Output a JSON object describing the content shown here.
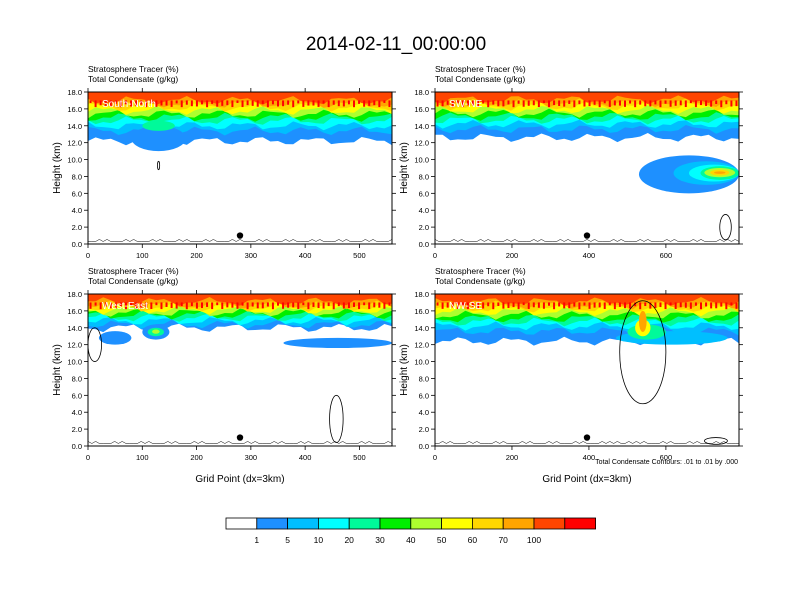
{
  "title": "2014-02-11_00:00:00",
  "footnote": "Total Condensate Contours: .01 to .01 by .000",
  "chart_data": [
    {
      "type": "heatmap",
      "panel_label": "South-North",
      "header_lines": [
        "Stratosphere Tracer   (%)",
        "Total Condensate   (g/kg)"
      ],
      "ylabel": "Height (km)",
      "xlabel": "",
      "xlim": [
        0,
        560
      ],
      "ylim": [
        0,
        18
      ],
      "xticks": [
        "0",
        "100",
        "200",
        "300",
        "400",
        "500"
      ],
      "xtick_values": [
        0,
        100,
        200,
        300,
        400,
        500
      ],
      "yticks": [
        "0.0",
        "2.0",
        "4.0",
        "6.0",
        "8.0",
        "10.0",
        "12.0",
        "14.0",
        "16.0",
        "18.0"
      ],
      "ytick_values": [
        0,
        2,
        4,
        6,
        8,
        10,
        12,
        14,
        16,
        18
      ],
      "marker": {
        "x": 280,
        "y": 1.0
      },
      "tracer_layers": [
        {
          "level": 1,
          "top": 18,
          "bottom": 12.2
        },
        {
          "level": 5,
          "top": 18,
          "bottom": 13.4
        },
        {
          "level": 10,
          "top": 18,
          "bottom": 14.0
        },
        {
          "level": 20,
          "top": 18,
          "bottom": 14.6
        },
        {
          "level": 30,
          "top": 18,
          "bottom": 15.0
        },
        {
          "level": 40,
          "top": 18,
          "bottom": 15.4
        },
        {
          "level": 50,
          "top": 18,
          "bottom": 15.8
        },
        {
          "level": 60,
          "top": 18,
          "bottom": 16.2
        },
        {
          "level": 70,
          "top": 18,
          "bottom": 16.6
        },
        {
          "level": 100,
          "top": 18,
          "bottom": 17.0
        }
      ],
      "features": [
        {
          "level": 1,
          "x": [
            80,
            180
          ],
          "y": [
            11.0,
            14.0
          ]
        },
        {
          "level": 20,
          "x": [
            100,
            160
          ],
          "y": [
            13.4,
            14.6
          ]
        }
      ],
      "condensate_contours": [
        {
          "x": [
            128,
            132
          ],
          "y": [
            8.8,
            9.8
          ]
        }
      ]
    },
    {
      "type": "heatmap",
      "panel_label": "SW-NE",
      "header_lines": [
        "Stratosphere Tracer   (%)",
        "Total Condensate   (g/kg)"
      ],
      "ylabel": "Height (km)",
      "xlabel": "",
      "xlim": [
        0,
        790
      ],
      "ylim": [
        0,
        18
      ],
      "xticks": [
        "0",
        "200",
        "400",
        "600"
      ],
      "xtick_values": [
        0,
        200,
        400,
        600
      ],
      "yticks": [
        "0.0",
        "2.0",
        "4.0",
        "6.0",
        "8.0",
        "10.0",
        "12.0",
        "14.0",
        "16.0",
        "18.0"
      ],
      "ytick_values": [
        0,
        2,
        4,
        6,
        8,
        10,
        12,
        14,
        16,
        18
      ],
      "marker": {
        "x": 395,
        "y": 1.0
      },
      "tracer_layers": [
        {
          "level": 1,
          "top": 18,
          "bottom": 12.6
        },
        {
          "level": 5,
          "top": 18,
          "bottom": 13.6
        },
        {
          "level": 10,
          "top": 18,
          "bottom": 14.2
        },
        {
          "level": 20,
          "top": 18,
          "bottom": 14.7
        },
        {
          "level": 30,
          "top": 18,
          "bottom": 15.1
        },
        {
          "level": 40,
          "top": 18,
          "bottom": 15.5
        },
        {
          "level": 50,
          "top": 18,
          "bottom": 15.9
        },
        {
          "level": 60,
          "top": 18,
          "bottom": 16.3
        },
        {
          "level": 70,
          "top": 18,
          "bottom": 16.7
        },
        {
          "level": 100,
          "top": 18,
          "bottom": 17.1
        }
      ],
      "features": [
        {
          "level": 1,
          "x": [
            530,
            790
          ],
          "y": [
            6.0,
            10.5
          ]
        },
        {
          "level": 5,
          "x": [
            620,
            790
          ],
          "y": [
            7.0,
            9.8
          ]
        },
        {
          "level": 10,
          "x": [
            660,
            790
          ],
          "y": [
            7.4,
            9.4
          ]
        },
        {
          "level": 20,
          "x": [
            690,
            790
          ],
          "y": [
            7.6,
            9.2
          ]
        },
        {
          "level": 40,
          "x": [
            700,
            780
          ],
          "y": [
            7.9,
            9.0
          ]
        },
        {
          "level": 60,
          "x": [
            715,
            765
          ],
          "y": [
            8.1,
            8.8
          ]
        },
        {
          "level": 70,
          "x": [
            725,
            755
          ],
          "y": [
            8.3,
            8.6
          ]
        }
      ],
      "condensate_contours": [
        {
          "x": [
            740,
            770
          ],
          "y": [
            0.5,
            3.5
          ]
        }
      ]
    },
    {
      "type": "heatmap",
      "panel_label": "West-East",
      "header_lines": [
        "Stratosphere Tracer   (%)",
        "Total Condensate   (g/kg)"
      ],
      "ylabel": "Height (km)",
      "xlabel": "Grid Point (dx=3km)",
      "xlim": [
        0,
        560
      ],
      "ylim": [
        0,
        18
      ],
      "xticks": [
        "0",
        "100",
        "200",
        "300",
        "400",
        "500"
      ],
      "xtick_values": [
        0,
        100,
        200,
        300,
        400,
        500
      ],
      "yticks": [
        "0.0",
        "2.0",
        "4.0",
        "6.0",
        "8.0",
        "10.0",
        "12.0",
        "14.0",
        "16.0",
        "18.0"
      ],
      "ytick_values": [
        0,
        2,
        4,
        6,
        8,
        10,
        12,
        14,
        16,
        18
      ],
      "marker": {
        "x": 280,
        "y": 1.0
      },
      "tracer_layers": [
        {
          "level": 1,
          "top": 18,
          "bottom": 14.0
        },
        {
          "level": 5,
          "top": 18,
          "bottom": 14.4
        },
        {
          "level": 10,
          "top": 18,
          "bottom": 14.8
        },
        {
          "level": 20,
          "top": 18,
          "bottom": 15.2
        },
        {
          "level": 30,
          "top": 18,
          "bottom": 15.5
        },
        {
          "level": 40,
          "top": 18,
          "bottom": 15.8
        },
        {
          "level": 50,
          "top": 18,
          "bottom": 16.1
        },
        {
          "level": 60,
          "top": 18,
          "bottom": 16.4
        },
        {
          "level": 70,
          "top": 18,
          "bottom": 16.7
        },
        {
          "level": 100,
          "top": 18,
          "bottom": 17.1
        }
      ],
      "features": [
        {
          "level": 1,
          "x": [
            20,
            80
          ],
          "y": [
            12.0,
            13.6
          ]
        },
        {
          "level": 1,
          "x": [
            100,
            150
          ],
          "y": [
            12.6,
            14.4
          ]
        },
        {
          "level": 20,
          "x": [
            110,
            140
          ],
          "y": [
            13.0,
            14.0
          ]
        },
        {
          "level": 40,
          "x": [
            118,
            132
          ],
          "y": [
            13.3,
            13.8
          ]
        },
        {
          "level": 1,
          "x": [
            360,
            560
          ],
          "y": [
            11.6,
            12.8
          ]
        }
      ],
      "condensate_contours": [
        {
          "x": [
            445,
            470
          ],
          "y": [
            0.4,
            6.0
          ]
        },
        {
          "x": [
            0,
            25
          ],
          "y": [
            10.0,
            14.0
          ]
        }
      ]
    },
    {
      "type": "heatmap",
      "panel_label": "NW-SE",
      "header_lines": [
        "Stratosphere Tracer   (%)",
        "Total Condensate   (g/kg)"
      ],
      "ylabel": "Height (km)",
      "xlabel": "Grid Point (dx=3km)",
      "xlim": [
        0,
        790
      ],
      "ylim": [
        0,
        18
      ],
      "xticks": [
        "0",
        "200",
        "400",
        "600"
      ],
      "xtick_values": [
        0,
        200,
        400,
        600
      ],
      "yticks": [
        "0.0",
        "2.0",
        "4.0",
        "6.0",
        "8.0",
        "10.0",
        "12.0",
        "14.0",
        "16.0",
        "18.0"
      ],
      "ytick_values": [
        0,
        2,
        4,
        6,
        8,
        10,
        12,
        14,
        16,
        18
      ],
      "marker": {
        "x": 395,
        "y": 1.0
      },
      "tracer_layers": [
        {
          "level": 1,
          "top": 18,
          "bottom": 12.4
        },
        {
          "level": 5,
          "top": 18,
          "bottom": 13.6
        },
        {
          "level": 10,
          "top": 18,
          "bottom": 14.2
        },
        {
          "level": 20,
          "top": 18,
          "bottom": 14.7
        },
        {
          "level": 30,
          "top": 18,
          "bottom": 15.1
        },
        {
          "level": 40,
          "top": 18,
          "bottom": 15.5
        },
        {
          "level": 50,
          "top": 18,
          "bottom": 15.9
        },
        {
          "level": 60,
          "top": 18,
          "bottom": 16.3
        },
        {
          "level": 70,
          "top": 18,
          "bottom": 16.7
        },
        {
          "level": 100,
          "top": 18,
          "bottom": 17.1
        }
      ],
      "features": [
        {
          "level": 5,
          "x": [
            470,
            760
          ],
          "y": [
            12.0,
            13.6
          ]
        },
        {
          "level": 20,
          "x": [
            500,
            600
          ],
          "y": [
            12.6,
            14.4
          ]
        },
        {
          "level": 50,
          "x": [
            520,
            560
          ],
          "y": [
            13.0,
            15.0
          ]
        },
        {
          "level": 70,
          "x": [
            530,
            550
          ],
          "y": [
            13.5,
            16.0
          ]
        }
      ],
      "condensate_contours": [
        {
          "x": [
            480,
            600
          ],
          "y": [
            5.0,
            17.2
          ]
        },
        {
          "x": [
            700,
            760
          ],
          "y": [
            0.2,
            1.0
          ]
        }
      ]
    }
  ],
  "colorbar": {
    "levels": [
      "1",
      "5",
      "10",
      "20",
      "30",
      "40",
      "50",
      "60",
      "70",
      "100"
    ],
    "colors": [
      "#ffffff",
      "#1e90ff",
      "#00bfff",
      "#00ffff",
      "#00fa9a",
      "#00ee00",
      "#adff2f",
      "#ffff00",
      "#ffd700",
      "#ffa500",
      "#ff4500",
      "#ff0000"
    ]
  }
}
